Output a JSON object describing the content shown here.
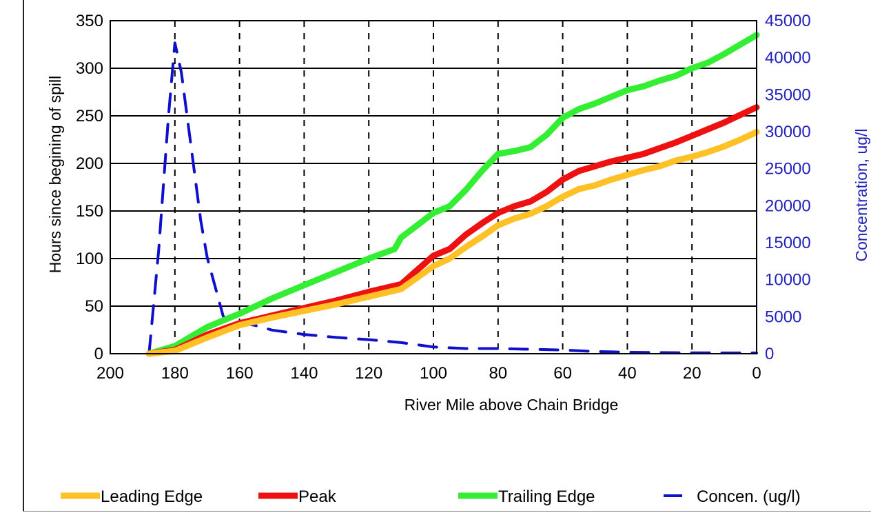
{
  "chart_data": {
    "type": "line",
    "title": "",
    "xlabel": "River Mile above Chain Bridge",
    "ylabel": "Hours since begining of spill",
    "y2label": "Concentration, ug/l",
    "xlim": [
      200,
      0
    ],
    "ylim": [
      0,
      350
    ],
    "y2lim": [
      0,
      45000
    ],
    "xticks": [
      "200",
      "180",
      "160",
      "140",
      "120",
      "100",
      "80",
      "60",
      "40",
      "20",
      "0"
    ],
    "yticks": [
      "0",
      "50",
      "100",
      "150",
      "200",
      "250",
      "300",
      "350"
    ],
    "y2ticks": [
      "0",
      "5000",
      "10000",
      "15000",
      "20000",
      "25000",
      "30000",
      "35000",
      "40000",
      "45000"
    ],
    "grid": "horizontal solid, vertical dashed",
    "legend_position": "bottom",
    "colors": {
      "leading": "#ffc125",
      "peak": "#ee1111",
      "trailing": "#33ee33",
      "concen": "#1010cc",
      "axis_right": "#2222bb"
    },
    "series": [
      {
        "name": "Leading Edge",
        "axis": "left",
        "x": [
          188,
          180,
          170,
          160,
          150,
          140,
          130,
          120,
          110,
          100,
          95,
          90,
          85,
          80,
          75,
          70,
          65,
          60,
          55,
          50,
          45,
          40,
          35,
          30,
          25,
          20,
          15,
          10,
          5,
          0
        ],
        "y": [
          0,
          3,
          17,
          30,
          38,
          45,
          52,
          60,
          68,
          92,
          100,
          112,
          123,
          135,
          142,
          147,
          155,
          165,
          173,
          177,
          183,
          188,
          193,
          197,
          203,
          207,
          212,
          218,
          225,
          233
        ]
      },
      {
        "name": "Peak",
        "axis": "left",
        "x": [
          188,
          180,
          170,
          160,
          150,
          140,
          130,
          120,
          110,
          100,
          95,
          90,
          85,
          80,
          75,
          70,
          65,
          60,
          55,
          50,
          45,
          40,
          35,
          30,
          25,
          20,
          15,
          10,
          5,
          0
        ],
        "y": [
          0,
          4,
          20,
          32,
          40,
          48,
          56,
          65,
          73,
          103,
          110,
          125,
          137,
          148,
          155,
          160,
          170,
          183,
          192,
          197,
          202,
          206,
          210,
          216,
          222,
          229,
          236,
          243,
          251,
          259
        ]
      },
      {
        "name": "Trailing Edge",
        "axis": "left",
        "x": [
          188,
          180,
          170,
          160,
          150,
          140,
          130,
          120,
          112,
          110,
          100,
          95,
          90,
          85,
          80,
          75,
          70,
          65,
          60,
          55,
          50,
          45,
          40,
          35,
          30,
          25,
          20,
          15,
          10,
          5,
          0
        ],
        "y": [
          0,
          8,
          28,
          42,
          58,
          72,
          86,
          100,
          110,
          122,
          148,
          155,
          172,
          192,
          210,
          213,
          217,
          230,
          248,
          257,
          263,
          270,
          277,
          281,
          287,
          292,
          300,
          306,
          315,
          325,
          335
        ]
      },
      {
        "name": "Concen. (ug/l)",
        "axis": "right",
        "style": "dashed",
        "x": [
          188,
          185,
          182,
          180,
          178,
          175,
          172,
          170,
          165,
          160,
          155,
          150,
          140,
          130,
          120,
          110,
          100,
          90,
          80,
          70,
          60,
          50,
          40,
          30,
          20,
          10,
          0
        ],
        "y": [
          0,
          14000,
          32000,
          42000,
          38000,
          28000,
          18000,
          13000,
          5000,
          4200,
          3800,
          3200,
          2600,
          2200,
          1900,
          1500,
          900,
          700,
          700,
          600,
          500,
          300,
          200,
          150,
          120,
          100,
          100
        ]
      }
    ]
  }
}
